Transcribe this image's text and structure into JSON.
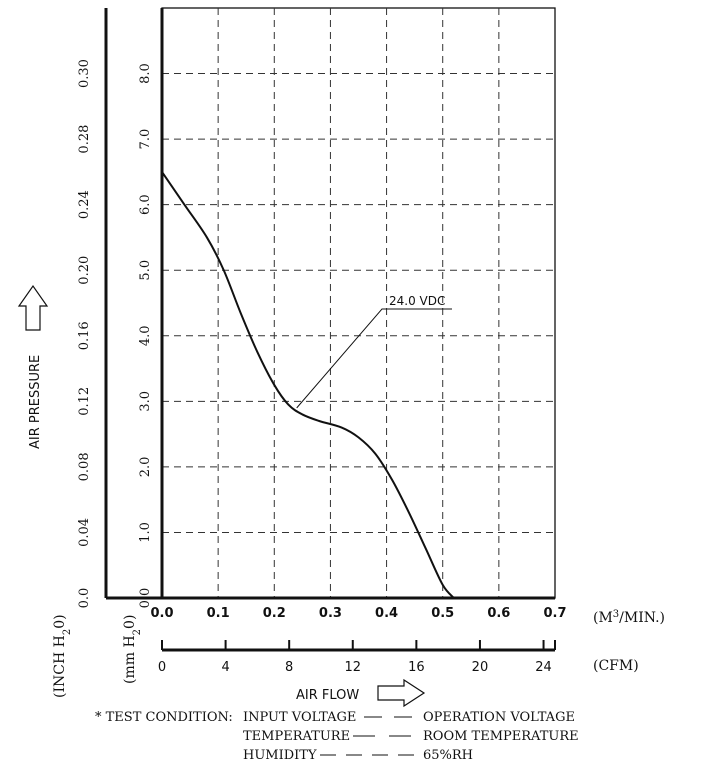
{
  "chart_data": {
    "type": "line",
    "title": "",
    "xlabel": "AIR FLOW",
    "ylabel": "AIR PRESSURE",
    "x_unit_primary": "(M3/MIN.)",
    "x_unit_secondary": "(CFM)",
    "y_unit_primary": "(mm H2O)",
    "y_unit_secondary": "(INCH H2O)",
    "xlim": [
      0,
      0.7
    ],
    "ylim": [
      0,
      9.0
    ],
    "grid": true,
    "x_ticks": [
      "0.0",
      "0.1",
      "0.2",
      "0.3",
      "0.4",
      "0.5",
      "0.6",
      "0.7"
    ],
    "x_ticks_cfm": [
      "0",
      "4",
      "8",
      "12",
      "16",
      "20",
      "24"
    ],
    "y_ticks_mm": [
      "0.0",
      "1.0",
      "2.0",
      "3.0",
      "4.0",
      "5.0",
      "6.0",
      "7.0",
      "8.0"
    ],
    "y_ticks_inch": [
      "0.0",
      "0.04",
      "0.08",
      "0.12",
      "0.16",
      "0.20",
      "0.24",
      "0.28",
      "0.30"
    ],
    "series": [
      {
        "name": "24.0 VDC",
        "x": [
          0.0,
          0.04,
          0.08,
          0.11,
          0.14,
          0.17,
          0.2,
          0.225,
          0.25,
          0.28,
          0.32,
          0.35,
          0.38,
          0.41,
          0.44,
          0.47,
          0.5,
          0.52
        ],
        "y": [
          6.5,
          6.0,
          5.5,
          5.0,
          4.35,
          3.75,
          3.25,
          2.95,
          2.8,
          2.7,
          2.6,
          2.45,
          2.2,
          1.8,
          1.3,
          0.75,
          0.2,
          0.0
        ]
      }
    ],
    "annotation": {
      "label": "24.0 VDC",
      "points_to": {
        "x": 0.24,
        "y": 2.9
      }
    }
  },
  "test_condition": {
    "prefix": "* TEST CONDITION:",
    "rows": [
      {
        "label": "INPUT VOLTAGE",
        "value": "OPERATION VOLTAGE"
      },
      {
        "label": "TEMPERATURE",
        "value": "ROOM TEMPERATURE"
      },
      {
        "label": "HUMIDITY",
        "value": "65%RH"
      }
    ]
  }
}
